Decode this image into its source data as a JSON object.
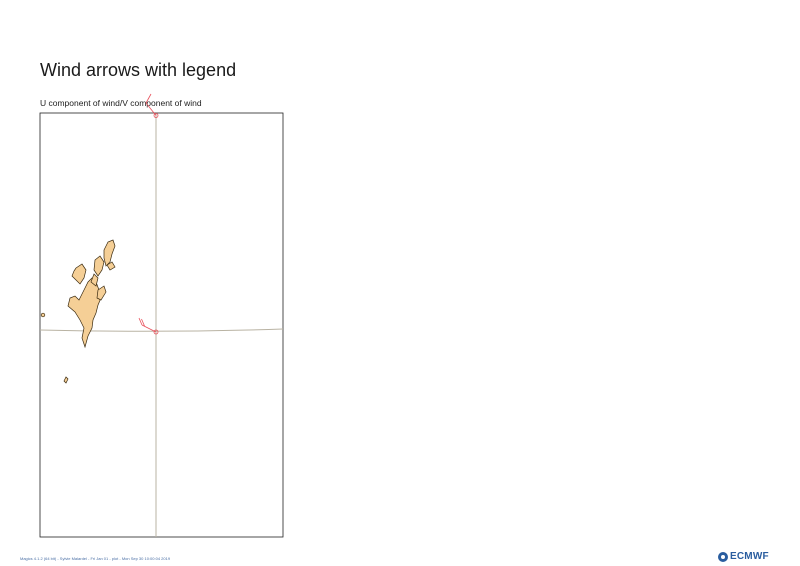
{
  "title": "Wind arrows with legend",
  "subtitle": "U component of wind/V component of wind",
  "footer": "Magics 4.1.2 (64 bit) - Sylvie Malardel - Fri Jan 01 - plot - Mon Sep 30 10:00:04 2019",
  "logo": {
    "icon": "ecmwf-logo-icon",
    "text": "ECMWF"
  },
  "colors": {
    "land": "#f5cf96",
    "coast": "#3a2a10",
    "grid": "#b9b3a3",
    "wind": "#e8505b",
    "frame": "#222222"
  }
}
